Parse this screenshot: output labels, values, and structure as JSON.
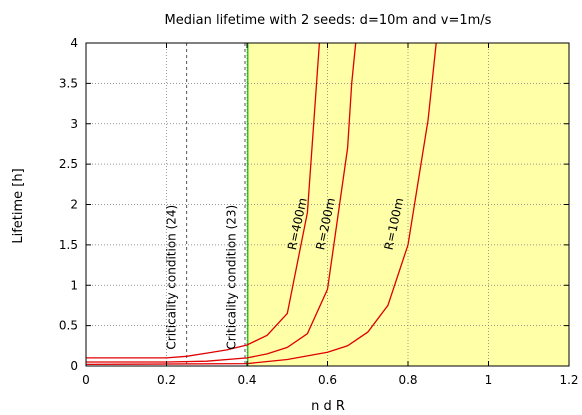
{
  "chart_data": {
    "type": "line",
    "title": "Median lifetime with 2 seeds: d=10m and v=1m/s",
    "xlabel": "n d R",
    "ylabel": "Lifetime [h]",
    "xlim": [
      0,
      1.2
    ],
    "ylim": [
      0,
      4
    ],
    "x_ticks": [
      0,
      0.2,
      0.4,
      0.6,
      0.8,
      1,
      1.2
    ],
    "y_ticks": [
      0,
      0.5,
      1,
      1.5,
      2,
      2.5,
      3,
      3.5,
      4
    ],
    "x_tick_labels": [
      "0",
      "0.2",
      "0.4",
      "0.6",
      "0.8",
      "1",
      "1.2"
    ],
    "y_tick_labels": [
      "0",
      "0.5",
      "1",
      "1.5",
      "2",
      "2.5",
      "3",
      "3.5",
      "4"
    ],
    "grid": true,
    "shaded_region": {
      "x_from": 0.4,
      "x_to": 1.2,
      "color": "#ffffa8"
    },
    "series_color": "#e00000",
    "series": [
      {
        "label": "R=400m",
        "label_at": {
          "x": 0.535,
          "y": 1.75
        },
        "points": [
          [
            0,
            0.1
          ],
          [
            0.1,
            0.1
          ],
          [
            0.2,
            0.1
          ],
          [
            0.25,
            0.12
          ],
          [
            0.3,
            0.16
          ],
          [
            0.35,
            0.2
          ],
          [
            0.4,
            0.26
          ],
          [
            0.45,
            0.38
          ],
          [
            0.5,
            0.65
          ],
          [
            0.55,
            1.9
          ],
          [
            0.58,
            4.0
          ]
        ]
      },
      {
        "label": "R=200m",
        "label_at": {
          "x": 0.605,
          "y": 1.75
        },
        "points": [
          [
            0,
            0.05
          ],
          [
            0.2,
            0.05
          ],
          [
            0.3,
            0.06
          ],
          [
            0.4,
            0.1
          ],
          [
            0.45,
            0.15
          ],
          [
            0.5,
            0.23
          ],
          [
            0.55,
            0.4
          ],
          [
            0.6,
            0.95
          ],
          [
            0.65,
            2.7
          ],
          [
            0.66,
            3.5
          ],
          [
            0.67,
            4.0
          ]
        ]
      },
      {
        "label": "R=100m",
        "label_at": {
          "x": 0.775,
          "y": 1.75
        },
        "points": [
          [
            0,
            0.02
          ],
          [
            0.4,
            0.03
          ],
          [
            0.5,
            0.08
          ],
          [
            0.6,
            0.17
          ],
          [
            0.65,
            0.25
          ],
          [
            0.7,
            0.42
          ],
          [
            0.75,
            0.75
          ],
          [
            0.8,
            1.5
          ],
          [
            0.85,
            3.05
          ],
          [
            0.87,
            4.0
          ]
        ]
      }
    ],
    "vertical_lines": [
      {
        "label": "Criticality condition (24)",
        "x": 0.25,
        "label_x": 0.222,
        "label_y": 1.1,
        "color": "#555555"
      },
      {
        "label": "Criticality condition (23)",
        "x": 0.395,
        "label_x": 0.371,
        "label_y": 1.1,
        "color": "#555555"
      },
      {
        "label": "",
        "x": 0.402,
        "color": "#00bb00"
      }
    ]
  }
}
